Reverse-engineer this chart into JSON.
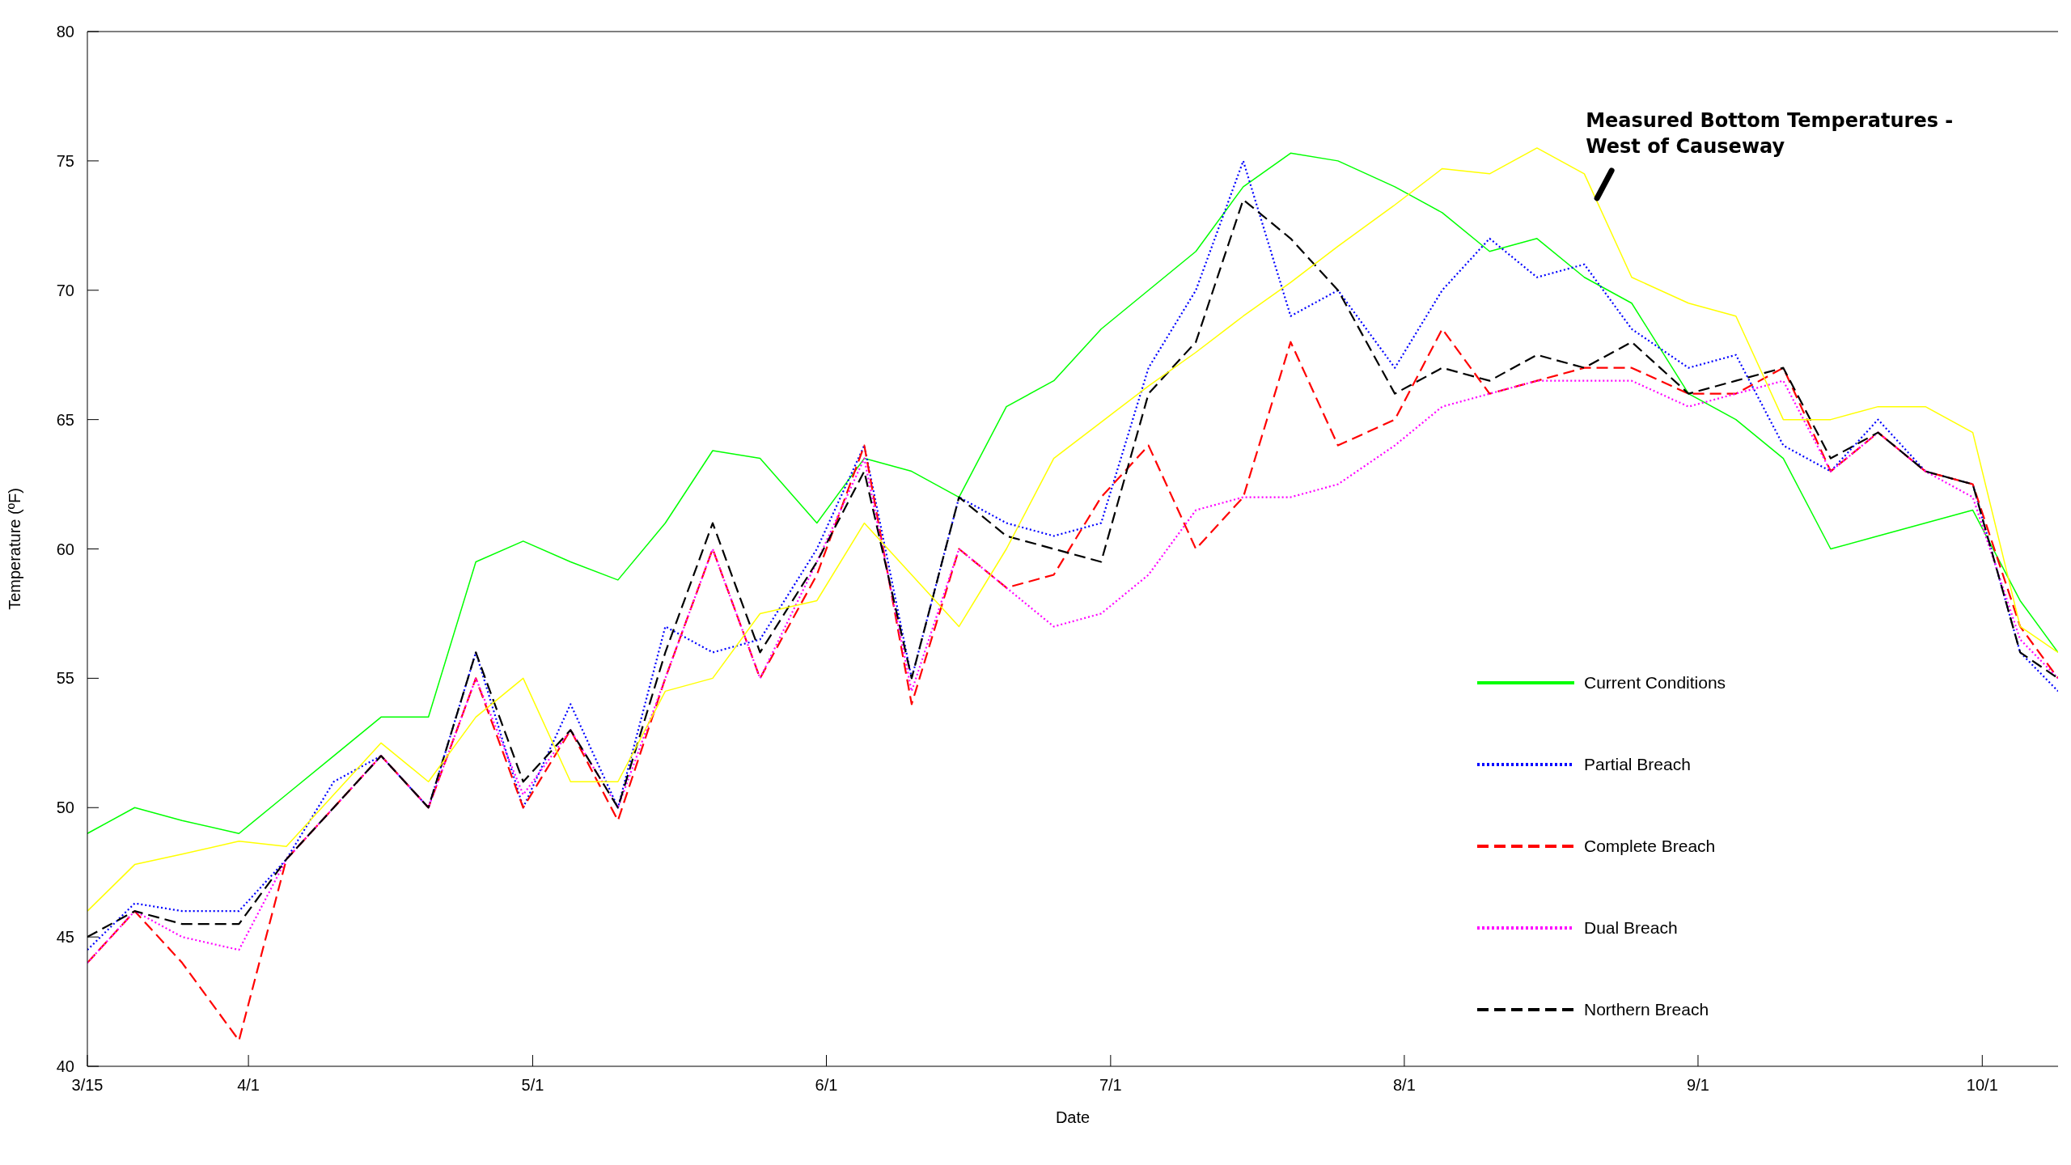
{
  "chart_data": {
    "type": "line",
    "xlabel": "Date",
    "ylabel": "Temperature (ºF)",
    "x": [
      "--03-15",
      "--03-20",
      "--03-25",
      "--03-31",
      "--04-05",
      "--04-10",
      "--04-15",
      "--04-20",
      "--04-25",
      "--04-30",
      "--05-05",
      "--05-10",
      "--05-15",
      "--05-20",
      "--05-25",
      "--05-31",
      "--06-05",
      "--06-10",
      "--06-15",
      "--06-20",
      "--06-25",
      "--06-30",
      "--07-05",
      "--07-10",
      "--07-15",
      "--07-20",
      "--07-25",
      "--07-31",
      "--08-05",
      "--08-10",
      "--08-15",
      "--08-20",
      "--08-25",
      "--08-31",
      "--09-05",
      "--09-10",
      "--09-15",
      "--09-20",
      "--09-25",
      "--09-30",
      "--10-05",
      "--10-09"
    ],
    "xlim": [
      "--03-15",
      "--10-09"
    ],
    "xticks": [
      {
        "value": "--03-15",
        "label": "3/15"
      },
      {
        "value": "--04-01",
        "label": "4/1"
      },
      {
        "value": "--05-01",
        "label": "5/1"
      },
      {
        "value": "--06-01",
        "label": "6/1"
      },
      {
        "value": "--07-01",
        "label": "7/1"
      },
      {
        "value": "--08-01",
        "label": "8/1"
      },
      {
        "value": "--09-01",
        "label": "9/1"
      },
      {
        "value": "--10-01",
        "label": "10/1"
      }
    ],
    "ylim": [
      40,
      80
    ],
    "yticks": [
      40,
      45,
      50,
      55,
      60,
      65,
      70,
      75,
      80
    ],
    "grid": false,
    "legend": "bottom right",
    "marker": "none",
    "series": [
      {
        "name": "Current Conditions",
        "color": "#00ff00",
        "line_style": "solid",
        "values": [
          49,
          50,
          49.5,
          49,
          50.5,
          52,
          53.5,
          53.5,
          59.5,
          60.3,
          59.5,
          58.8,
          61,
          63.8,
          63.5,
          61,
          63.5,
          63,
          62,
          65.5,
          66.5,
          68.5,
          70,
          71.5,
          74,
          75.3,
          75,
          74,
          73,
          71.5,
          72,
          70.5,
          69.5,
          66,
          65,
          63.5,
          60,
          60.5,
          61,
          61.5,
          58,
          56
        ]
      },
      {
        "name": "Partial Breach",
        "color": "#0000ff",
        "line_style": "dotted",
        "values": [
          44.5,
          46.3,
          46,
          46,
          48,
          51,
          52,
          50,
          56,
          50,
          54,
          50,
          57,
          56,
          56.5,
          60,
          64,
          55,
          62,
          61,
          60.5,
          61,
          67,
          70,
          75,
          69,
          70,
          67,
          70,
          72,
          70.5,
          71,
          68.5,
          67,
          67.5,
          64,
          63,
          65,
          63,
          62.5,
          56,
          54.5
        ]
      },
      {
        "name": "Complete Breach",
        "color": "#ff0000",
        "line_style": "dashed",
        "values": [
          44,
          46,
          44,
          41,
          48,
          50,
          52,
          50,
          55,
          50,
          53,
          49.5,
          55,
          60,
          55,
          59,
          64,
          54,
          60,
          58.5,
          59,
          62,
          64,
          60,
          62,
          68,
          64,
          65,
          68.5,
          66,
          66.5,
          67,
          67,
          66,
          66,
          67,
          63,
          64.5,
          63,
          62.5,
          57,
          55
        ]
      },
      {
        "name": "Dual Breach",
        "color": "#ff00ff",
        "line_style": "dotted",
        "values": [
          44,
          46,
          45,
          44.5,
          48,
          50,
          52,
          50,
          55,
          50.5,
          53,
          50,
          55,
          60,
          55,
          59.5,
          63.5,
          54.5,
          60,
          58.5,
          57,
          57.5,
          59,
          61.5,
          62,
          62,
          62.5,
          64,
          65.5,
          66,
          66.5,
          66.5,
          66.5,
          65.5,
          66,
          66.5,
          63,
          64.5,
          63,
          62,
          56.5,
          55
        ]
      },
      {
        "name": "Northern Breach",
        "color": "#000000",
        "line_style": "dashed",
        "values": [
          45,
          46,
          45.5,
          45.5,
          48,
          50,
          52,
          50,
          56,
          51,
          53,
          50,
          56,
          61,
          56,
          59.5,
          63,
          55,
          62,
          60.5,
          60,
          59.5,
          66,
          68,
          73.5,
          72,
          70,
          66,
          67,
          66.5,
          67.5,
          67,
          68,
          66,
          66.5,
          67,
          63.5,
          64.5,
          63,
          62.5,
          56,
          55
        ]
      },
      {
        "color": "#ffff00",
        "line_style": "solid",
        "values": [
          46,
          47.8,
          48.2,
          48.7,
          48.5,
          50.5,
          52.5,
          51,
          53.5,
          55,
          51,
          51,
          54.5,
          55,
          57.5,
          58,
          61,
          59,
          57,
          60,
          63.5,
          64.9,
          66.3,
          67.6,
          69,
          70.3,
          71.7,
          73.3,
          74.7,
          74.5,
          75.5,
          74.5,
          70.5,
          69.5,
          69,
          65,
          65,
          65.5,
          65.5,
          64.5,
          57,
          56
        ]
      }
    ],
    "annotations": [
      {
        "text": "Measured Bottom Temperatures - West of Causeway",
        "x": "--08-21",
        "y": 73.5
      }
    ]
  }
}
